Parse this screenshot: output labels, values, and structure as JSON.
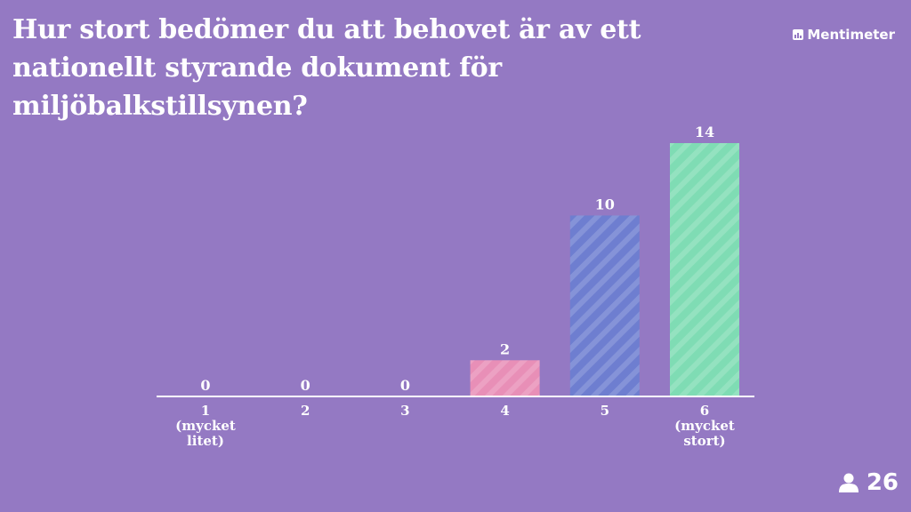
{
  "question": "Hur stort bedömer du att behovet är av ett nationellt styrande dokument för miljöbalkstillsynen?",
  "brand": {
    "name": "Mentimeter",
    "icon": "mentimeter-logo-icon"
  },
  "participants": {
    "icon": "person-icon",
    "count": "26"
  },
  "colors": {
    "background": "#9479c3",
    "axis": "#ffffff"
  },
  "chart_data": {
    "type": "bar",
    "title": "",
    "xlabel": "",
    "ylabel": "",
    "categories": [
      "1 (mycket litet)",
      "2",
      "3",
      "4",
      "5",
      "6 (mycket stort)"
    ],
    "category_lines": [
      [
        "1",
        "(mycket",
        "litet)"
      ],
      [
        "2"
      ],
      [
        "3"
      ],
      [
        "4"
      ],
      [
        "5"
      ],
      [
        "6",
        "(mycket",
        "stort)"
      ]
    ],
    "values": [
      0,
      0,
      0,
      2,
      10,
      14
    ],
    "bar_colors": [
      "#e88fb7",
      "#e88fb7",
      "#e88fb7",
      "#e88fb7",
      "#6e7ed0",
      "#7fdcb4"
    ],
    "ylim": [
      0,
      14
    ],
    "grid": false,
    "legend": "none"
  }
}
